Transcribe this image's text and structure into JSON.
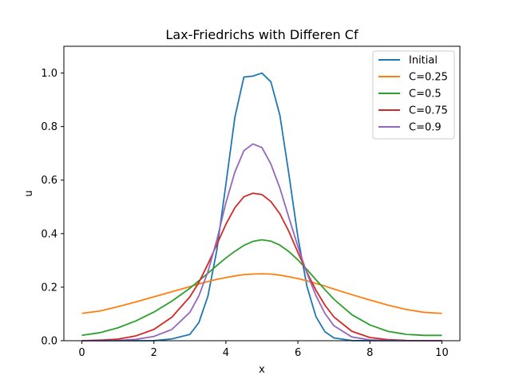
{
  "chart_data": {
    "type": "line",
    "title": "Lax-Friedrichs with Differen Cf",
    "xlabel": "x",
    "ylabel": "u",
    "xlim": [
      -0.5,
      10.5
    ],
    "ylim": [
      0,
      1.1
    ],
    "xticks": [
      0,
      2,
      4,
      6,
      8,
      10
    ],
    "xtick_labels": [
      "0",
      "2",
      "4",
      "6",
      "8",
      "10"
    ],
    "yticks": [
      0,
      0.2,
      0.4,
      0.6,
      0.8,
      1.0
    ],
    "ytick_labels": [
      "0.0",
      "0.2",
      "0.4",
      "0.6",
      "0.8",
      "1.0"
    ],
    "grid": false,
    "legend_position": "top-right",
    "x": [
      0,
      0.5,
      1,
      1.5,
      2,
      2.5,
      3,
      3.25,
      3.5,
      3.75,
      4,
      4.25,
      4.5,
      4.75,
      5,
      5.25,
      5.5,
      5.75,
      6,
      6.25,
      6.5,
      6.75,
      7,
      7.5,
      8,
      8.5,
      9,
      9.5,
      10
    ],
    "series": [
      {
        "name": "Initial",
        "color": "#1f77b4",
        "values": [
          0,
          0,
          0,
          0,
          0.0002,
          0.0067,
          0.0235,
          0.0679,
          0.1661,
          0.3394,
          0.5841,
          0.8351,
          0.985,
          0.9886,
          1.0,
          0.9672,
          0.8421,
          0.6224,
          0.3878,
          0.204,
          0.0904,
          0.0337,
          0.0105,
          0.0006,
          0,
          0,
          0,
          0,
          0
        ]
      },
      {
        "name": "C=0.25",
        "color": "#ff7f0e",
        "values": [
          0.102,
          0.111,
          0.127,
          0.145,
          0.164,
          0.183,
          0.202,
          0.212,
          0.221,
          0.229,
          0.236,
          0.242,
          0.247,
          0.249,
          0.25,
          0.249,
          0.245,
          0.239,
          0.232,
          0.224,
          0.214,
          0.204,
          0.193,
          0.172,
          0.152,
          0.133,
          0.117,
          0.106,
          0.102
        ]
      },
      {
        "name": "C=0.5",
        "color": "#2ca02c",
        "values": [
          0.02,
          0.03,
          0.048,
          0.074,
          0.107,
          0.148,
          0.196,
          0.224,
          0.252,
          0.281,
          0.309,
          0.334,
          0.356,
          0.371,
          0.377,
          0.372,
          0.357,
          0.333,
          0.302,
          0.266,
          0.228,
          0.191,
          0.155,
          0.097,
          0.059,
          0.035,
          0.024,
          0.02,
          0.02
        ]
      },
      {
        "name": "C=0.75",
        "color": "#d62728",
        "values": [
          0.0,
          0.002,
          0.006,
          0.018,
          0.042,
          0.088,
          0.164,
          0.218,
          0.286,
          0.36,
          0.435,
          0.497,
          0.538,
          0.551,
          0.546,
          0.52,
          0.474,
          0.408,
          0.33,
          0.256,
          0.189,
          0.133,
          0.089,
          0.035,
          0.012,
          0.004,
          0.001,
          0.0,
          0.0
        ]
      },
      {
        "name": "C=0.9",
        "color": "#9467bd",
        "values": [
          0.0,
          0.0,
          0.001,
          0.005,
          0.016,
          0.042,
          0.106,
          0.168,
          0.257,
          0.377,
          0.515,
          0.63,
          0.71,
          0.735,
          0.722,
          0.66,
          0.57,
          0.46,
          0.352,
          0.253,
          0.169,
          0.102,
          0.056,
          0.014,
          0.003,
          0.001,
          0.0,
          0.0,
          0.0
        ]
      }
    ]
  }
}
